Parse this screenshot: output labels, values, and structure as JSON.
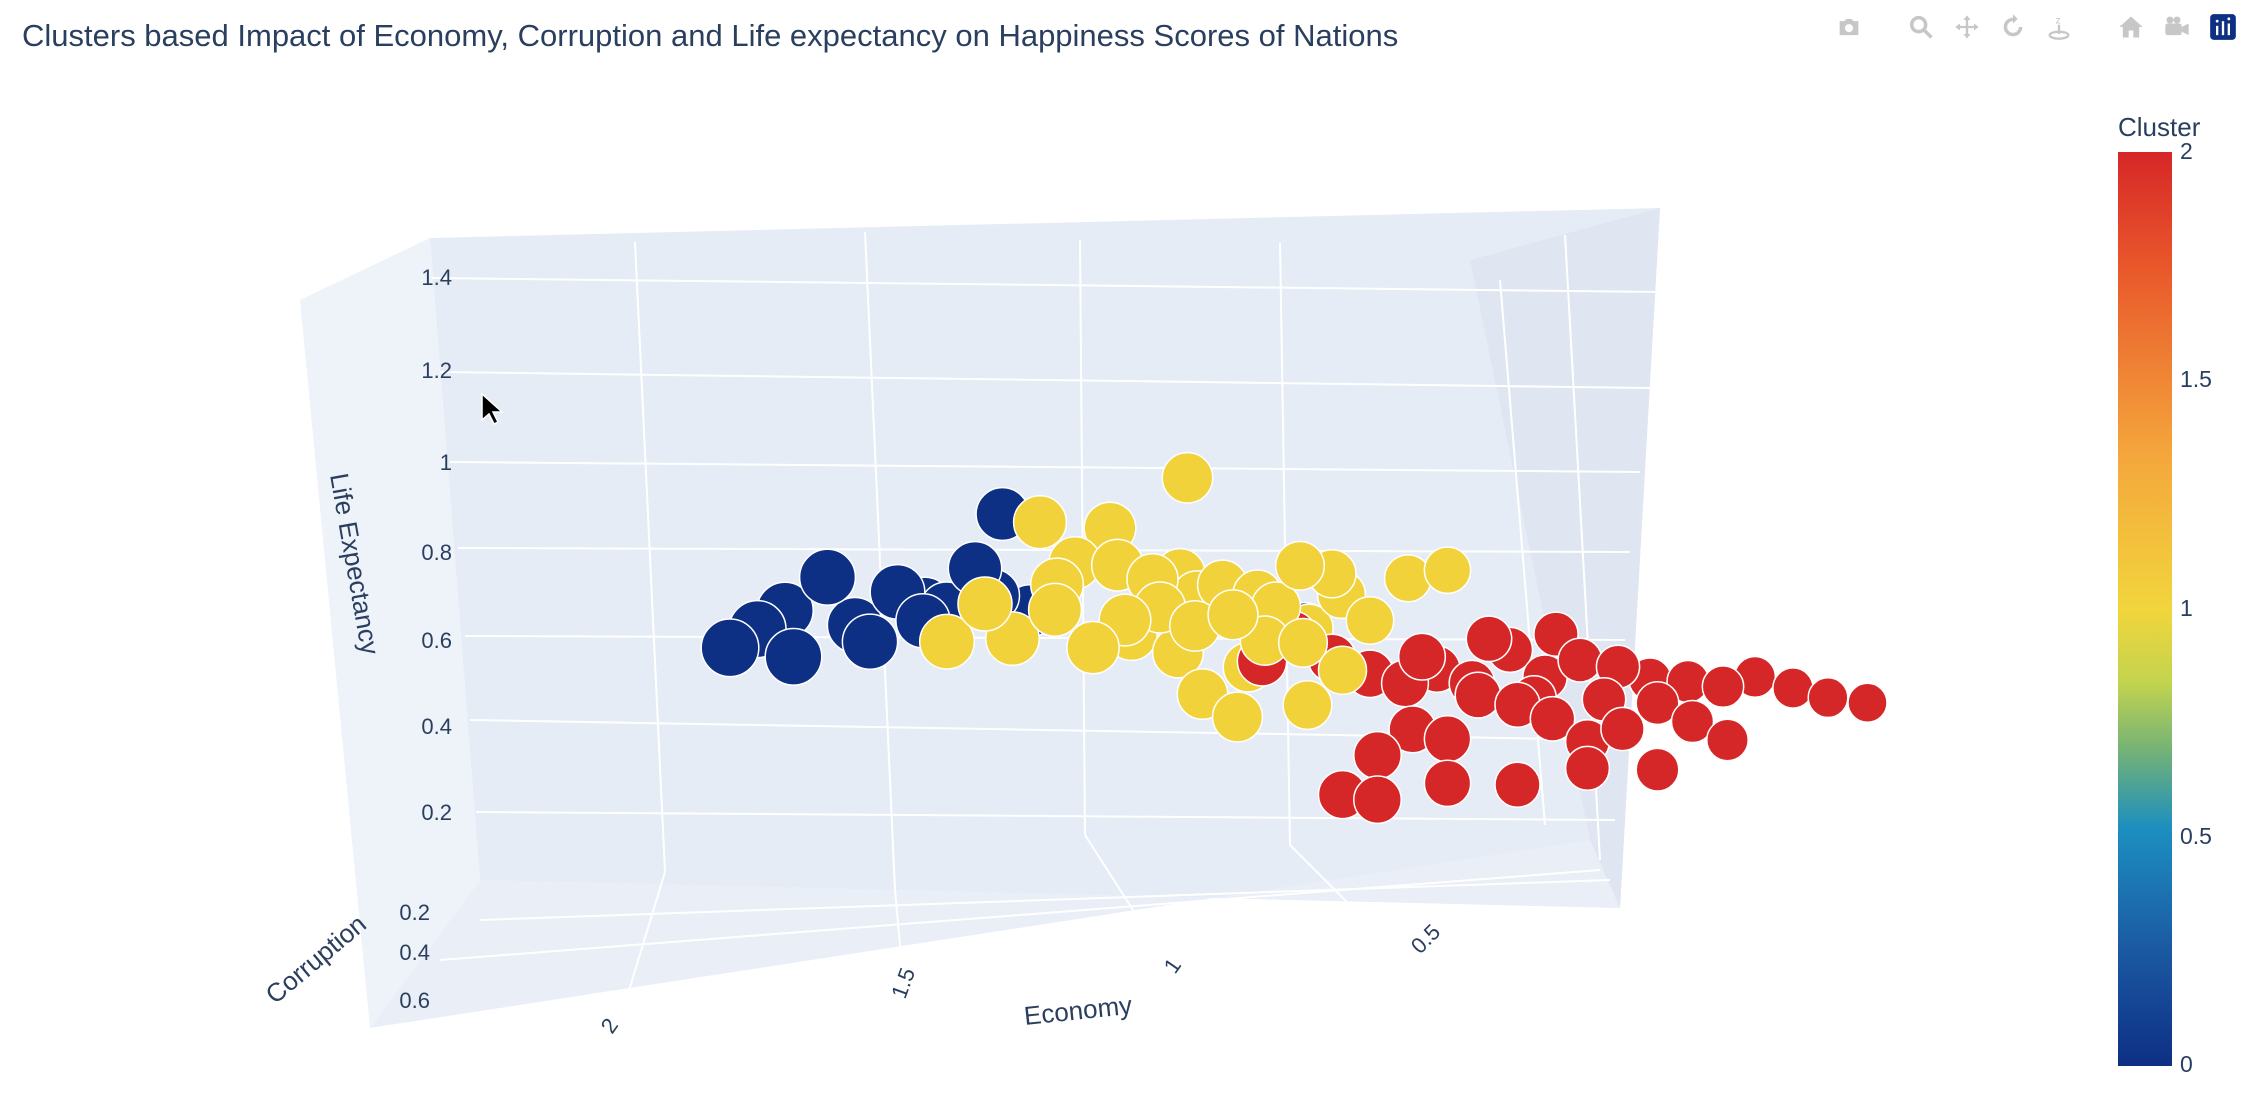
{
  "title": "Clusters based Impact of Economy, Corruption and Life expectancy on Happiness Scores of Nations",
  "modebar": [
    "camera-icon",
    "zoom-icon",
    "pan-icon",
    "orbit-rotation-icon",
    "turntable-rotation-icon",
    "reset-camera-icon",
    "camera-last-save-icon",
    "plotly-logo-icon"
  ],
  "colorbar": {
    "title": "Cluster",
    "ticks": [
      "2",
      "1.5",
      "1",
      "0.5",
      "0"
    ]
  },
  "colors": {
    "cluster0": "#0d2f84",
    "cluster1": "#f2d23a",
    "cluster2": "#d62728",
    "grid": "#ffffff",
    "pane": "#e5ecf6"
  },
  "chart_data": {
    "type": "scatter3d",
    "title": "Clusters based Impact of Economy, Corruption and Life expectancy on Happiness Scores of Nations",
    "axes": {
      "x": {
        "label": "Economy",
        "ticks": [
          "2",
          "1.5",
          "1",
          "0.5"
        ]
      },
      "y": {
        "label": "Corruption",
        "ticks": [
          "0.2",
          "0.4",
          "0.6"
        ]
      },
      "z": {
        "label": "Life Expectancy",
        "ticks": [
          "0.2",
          "0.4",
          "0.6",
          "0.8",
          "1",
          "1.2",
          "1.4"
        ]
      }
    },
    "color_scale": {
      "title": "Cluster",
      "min": 0,
      "max": 2
    },
    "series": [
      {
        "name": "0",
        "points": [
          [
            1.7,
            0.5,
            0.9
          ],
          [
            1.75,
            0.45,
            0.85
          ],
          [
            1.8,
            0.4,
            0.8
          ],
          [
            1.65,
            0.45,
            0.95
          ],
          [
            1.6,
            0.5,
            0.85
          ],
          [
            1.55,
            0.45,
            0.9
          ],
          [
            1.5,
            0.5,
            0.88
          ],
          [
            1.48,
            0.45,
            0.85
          ],
          [
            1.45,
            0.4,
            0.92
          ],
          [
            1.52,
            0.42,
            0.82
          ],
          [
            1.6,
            0.4,
            0.78
          ],
          [
            1.4,
            0.45,
            1.05
          ],
          [
            1.42,
            0.42,
            0.86
          ],
          [
            1.35,
            0.5,
            0.84
          ],
          [
            1.0,
            0.3,
            0.68
          ],
          [
            1.72,
            0.35,
            0.75
          ]
        ]
      },
      {
        "name": "1",
        "points": [
          [
            1.4,
            0.2,
            0.95
          ],
          [
            1.3,
            0.2,
            0.92
          ],
          [
            1.2,
            0.15,
            1.0
          ],
          [
            1.35,
            0.2,
            0.85
          ],
          [
            1.3,
            0.15,
            0.82
          ],
          [
            1.25,
            0.15,
            0.78
          ],
          [
            1.2,
            0.2,
            0.8
          ],
          [
            1.15,
            0.15,
            0.75
          ],
          [
            1.1,
            0.15,
            0.72
          ],
          [
            1.05,
            0.1,
            0.76
          ],
          [
            1.0,
            0.12,
            0.74
          ],
          [
            1.25,
            0.1,
            0.7
          ],
          [
            1.2,
            0.1,
            0.65
          ],
          [
            1.3,
            0.1,
            0.68
          ],
          [
            1.4,
            0.1,
            0.72
          ],
          [
            1.5,
            0.1,
            0.75
          ],
          [
            1.55,
            0.12,
            0.68
          ],
          [
            1.35,
            0.08,
            0.62
          ],
          [
            1.15,
            0.08,
            0.66
          ],
          [
            1.1,
            0.1,
            0.6
          ],
          [
            1.05,
            0.08,
            0.58
          ],
          [
            0.95,
            0.1,
            0.62
          ],
          [
            0.9,
            0.08,
            0.7
          ],
          [
            1.2,
            0.05,
            0.48
          ],
          [
            1.15,
            0.05,
            0.42
          ],
          [
            1.05,
            0.05,
            0.43
          ],
          [
            1.0,
            0.05,
            0.5
          ],
          [
            0.85,
            0.05,
            0.7
          ],
          [
            1.28,
            0.15,
            0.66
          ],
          [
            1.22,
            0.12,
            0.6
          ],
          [
            1.12,
            0.12,
            0.55
          ],
          [
            1.08,
            0.12,
            0.68
          ],
          [
            0.98,
            0.15,
            0.7
          ],
          [
            1.18,
            0.18,
            0.74
          ],
          [
            1.38,
            0.18,
            0.8
          ],
          [
            1.45,
            0.15,
            0.68
          ],
          [
            1.02,
            0.18,
            0.64
          ]
        ]
      },
      {
        "name": "2",
        "points": [
          [
            1.05,
            0.15,
            0.62
          ],
          [
            1.1,
            0.12,
            0.56
          ],
          [
            1.0,
            0.12,
            0.55
          ],
          [
            0.95,
            0.1,
            0.5
          ],
          [
            0.9,
            0.1,
            0.47
          ],
          [
            0.85,
            0.12,
            0.5
          ],
          [
            0.8,
            0.12,
            0.46
          ],
          [
            0.75,
            0.1,
            0.52
          ],
          [
            0.7,
            0.1,
            0.45
          ],
          [
            0.65,
            0.1,
            0.48
          ],
          [
            0.6,
            0.08,
            0.45
          ],
          [
            0.55,
            0.1,
            0.42
          ],
          [
            0.5,
            0.08,
            0.4
          ],
          [
            0.45,
            0.08,
            0.38
          ],
          [
            0.4,
            0.1,
            0.4
          ],
          [
            0.35,
            0.08,
            0.36
          ],
          [
            0.3,
            0.08,
            0.33
          ],
          [
            0.25,
            0.05,
            0.3
          ],
          [
            0.9,
            0.05,
            0.35
          ],
          [
            0.95,
            0.05,
            0.3
          ],
          [
            0.85,
            0.05,
            0.32
          ],
          [
            0.75,
            0.05,
            0.38
          ],
          [
            0.7,
            0.05,
            0.34
          ],
          [
            0.65,
            0.05,
            0.28
          ],
          [
            0.6,
            0.05,
            0.3
          ],
          [
            0.55,
            0.05,
            0.35
          ],
          [
            0.5,
            0.05,
            0.3
          ],
          [
            0.45,
            0.05,
            0.25
          ],
          [
            1.0,
            0.05,
            0.22
          ],
          [
            0.95,
            0.05,
            0.2
          ],
          [
            0.85,
            0.05,
            0.22
          ],
          [
            0.75,
            0.05,
            0.2
          ],
          [
            0.65,
            0.05,
            0.22
          ],
          [
            0.55,
            0.05,
            0.2
          ],
          [
            0.8,
            0.08,
            0.42
          ],
          [
            0.72,
            0.08,
            0.4
          ],
          [
            0.62,
            0.08,
            0.38
          ],
          [
            0.88,
            0.08,
            0.52
          ],
          [
            0.78,
            0.1,
            0.55
          ],
          [
            0.68,
            0.12,
            0.55
          ]
        ]
      }
    ]
  }
}
